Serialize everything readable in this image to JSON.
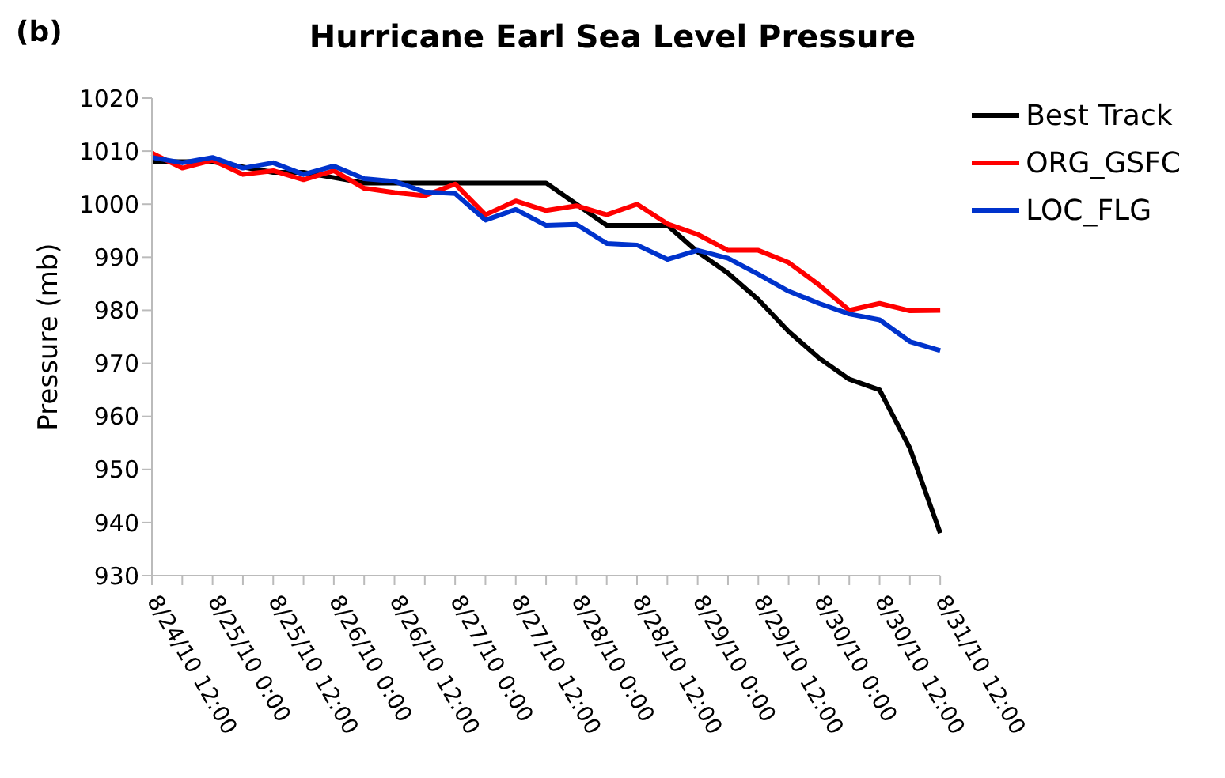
{
  "chart_data": {
    "type": "line",
    "title": "Hurricane Earl Sea Level Pressure",
    "ylabel": "Pressure (mb)",
    "annotations": [
      "(b)"
    ],
    "categories": [
      "8/24/10 12:00",
      null,
      "8/25/10 0:00",
      null,
      "8/25/10 12:00",
      null,
      "8/26/10 0:00",
      null,
      "8/26/10 12:00",
      null,
      "8/27/10 0:00",
      null,
      "8/27/10 12:00",
      null,
      "8/28/10 0:00",
      null,
      "8/28/10 12:00",
      null,
      "8/29/10 0:00",
      null,
      "8/29/10 12:00",
      null,
      "8/30/10 0:00",
      null,
      "8/30/10 12:00",
      null,
      "8/31/10 12:00"
    ],
    "series": [
      {
        "name": "Best Track",
        "color": "#000000",
        "values": [
          1008,
          1008,
          1008,
          1007,
          1006,
          1006,
          1005,
          1004,
          1004,
          1004,
          1004,
          1004,
          1004,
          1004,
          1000,
          996,
          996,
          996,
          991,
          987,
          982,
          976,
          971,
          967,
          965,
          954,
          938
        ]
      },
      {
        "name": "ORG_GSFC",
        "color": "#ff0000",
        "values": [
          1009.6,
          1006.8,
          1008.3,
          1005.6,
          1006.3,
          1004.6,
          1006.3,
          1003,
          1002.2,
          1001.6,
          1003.8,
          998,
          1000.6,
          998.8,
          999.7,
          998,
          1000,
          996.3,
          994.3,
          991.3,
          991.3,
          989,
          984.8,
          980,
          981.3,
          979.9,
          980
        ]
      },
      {
        "name": "LOC_FLG",
        "color": "#0033cc",
        "values": [
          1008.8,
          1007.8,
          1008.8,
          1006.8,
          1007.8,
          1005.6,
          1007.2,
          1004.8,
          1004.3,
          1002.3,
          1002,
          997,
          999,
          996,
          996.2,
          992.6,
          992.3,
          989.6,
          991.3,
          989.8,
          986.8,
          983.6,
          981.3,
          979.3,
          978.2,
          974.1,
          972.4
        ]
      }
    ],
    "ylim": [
      930,
      1020
    ],
    "yticks": [
      930,
      940,
      950,
      960,
      970,
      980,
      990,
      1000,
      1010,
      1020
    ],
    "grid": false,
    "legend": "top right",
    "marker": "none",
    "line_style": "solid"
  }
}
